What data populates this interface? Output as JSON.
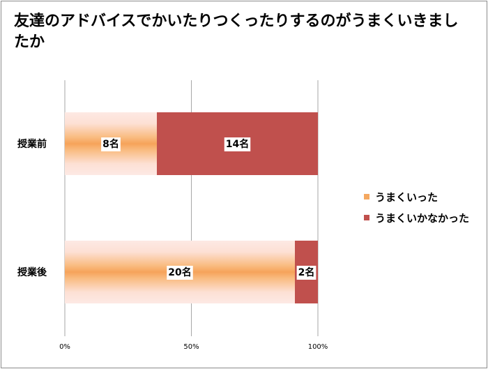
{
  "chart_data": {
    "type": "bar",
    "orientation": "horizontal",
    "stacked": "percent",
    "title": "友達のアドバイスでかいたりつくったりするのがうまくいきましたか",
    "categories": [
      "授業前",
      "授業後"
    ],
    "series": [
      {
        "name": "うまくいった",
        "values": [
          8,
          20
        ],
        "labels": [
          "8名",
          "20名"
        ],
        "color": "#f5a860"
      },
      {
        "name": "うまくいかなかった",
        "values": [
          14,
          2
        ],
        "labels": [
          "14名",
          "2名"
        ],
        "color": "#c0504d"
      }
    ],
    "xaxis_ticks": [
      "0%",
      "50%",
      "100%"
    ],
    "xlim": [
      0,
      100
    ],
    "grid": true,
    "legend_position": "right"
  }
}
